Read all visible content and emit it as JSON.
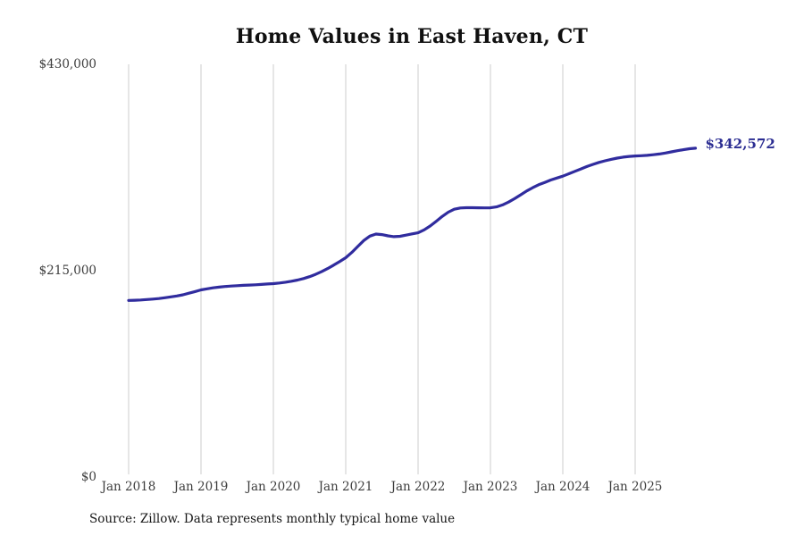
{
  "chart_data": {
    "type": "line",
    "title": "Home Values in East Haven, CT",
    "xlabel": "",
    "ylabel": "",
    "ylim": [
      0,
      430000
    ],
    "ytick_values": [
      0,
      215000,
      430000
    ],
    "ytick_labels": [
      "$0",
      "$215,000",
      "$430,000"
    ],
    "xtick_labels": [
      "Jan 2018",
      "Jan 2019",
      "Jan 2020",
      "Jan 2021",
      "Jan 2022",
      "Jan 2023",
      "Jan 2024",
      "Jan 2025"
    ],
    "x_start": "2018-01",
    "x_end": "2025-11",
    "x_frequency": "monthly",
    "grid": "vertical-only",
    "legend": "none",
    "series": [
      {
        "name": "Monthly typical home value",
        "color": "#302c9e",
        "values": [
          184000,
          184200,
          184500,
          184900,
          185400,
          186000,
          186800,
          187700,
          188700,
          189900,
          191500,
          193200,
          195000,
          196100,
          197100,
          197900,
          198500,
          199000,
          199400,
          199700,
          200000,
          200300,
          200700,
          201100,
          201500,
          202200,
          203000,
          204000,
          205200,
          206800,
          208800,
          211200,
          214000,
          217200,
          220800,
          224600,
          228500,
          234000,
          240200,
          246500,
          251000,
          253200,
          252600,
          251300,
          250500,
          250800,
          252000,
          253300,
          254500,
          257500,
          261500,
          266500,
          271500,
          276000,
          279000,
          280300,
          280600,
          280600,
          280500,
          280400,
          280500,
          281500,
          283500,
          286500,
          290000,
          294000,
          298000,
          301500,
          304500,
          307000,
          309500,
          311500,
          313500,
          316000,
          318500,
          321000,
          323500,
          325800,
          327800,
          329500,
          331000,
          332300,
          333300,
          334000,
          334500,
          334800,
          335200,
          335800,
          336600,
          337600,
          338800,
          340000,
          341000,
          342000,
          342572
        ]
      }
    ],
    "annotation": {
      "label": "$342,572",
      "value": 342572,
      "color": "#2b2d92"
    },
    "source_note": "Source: Zillow. Data represents monthly typical home value"
  }
}
